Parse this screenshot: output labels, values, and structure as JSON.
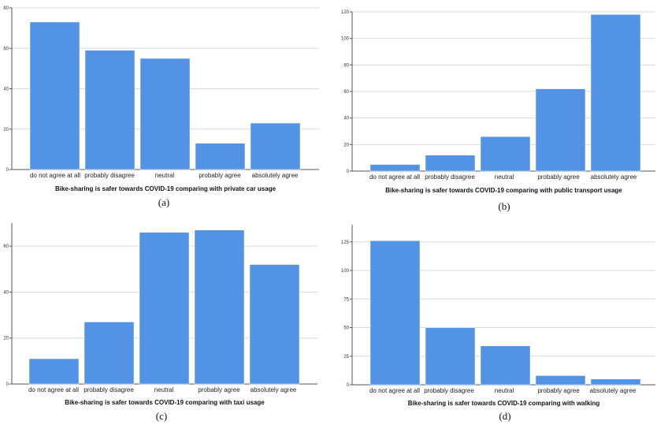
{
  "colors": {
    "bar": "#5393e6"
  },
  "chart_data": [
    {
      "type": "bar",
      "caption": "(a)",
      "xlabel": "Bike-sharing is safer towards COVID-19 comparing with private car usage",
      "categories": [
        "do not agree at all",
        "probably disagree",
        "neutral",
        "probably agree",
        "absolutely agree"
      ],
      "values": [
        73,
        59,
        55,
        13,
        23
      ],
      "ylim": [
        0,
        80
      ],
      "yticks": [
        0,
        20,
        40,
        60,
        80
      ],
      "grid": true
    },
    {
      "type": "bar",
      "caption": "(b)",
      "xlabel": "Bike-sharing is safer towards COVID-19 comparing with public transport usage",
      "categories": [
        "do not agree at all",
        "probably disagree",
        "neutral",
        "probably agree",
        "absolutely agree"
      ],
      "values": [
        5,
        12,
        26,
        62,
        118
      ],
      "ylim": [
        0,
        120
      ],
      "yticks": [
        0,
        20,
        40,
        60,
        80,
        100,
        120
      ],
      "grid": true
    },
    {
      "type": "bar",
      "caption": "(c)",
      "xlabel": "Bike-sharing is safer towards COVID-19 comparing with taxi usage",
      "categories": [
        "do not agree at all",
        "probably disagree",
        "neutral",
        "probably agree",
        "absolutely agree"
      ],
      "values": [
        11,
        27,
        66,
        67,
        52
      ],
      "ylim": [
        0,
        70
      ],
      "yticks": [
        0,
        20,
        40,
        60
      ],
      "grid": true
    },
    {
      "type": "bar",
      "caption": "(d)",
      "xlabel": "Bike-sharing is safer towards COVID-19 comparing with walking",
      "categories": [
        "do not agree at all",
        "probably disagree",
        "neutral",
        "probably agree",
        "absolutely agree"
      ],
      "values": [
        126,
        50,
        34,
        8,
        5
      ],
      "ylim": [
        0,
        140
      ],
      "yticks": [
        0,
        25,
        50,
        75,
        100,
        125
      ],
      "grid": true
    }
  ]
}
